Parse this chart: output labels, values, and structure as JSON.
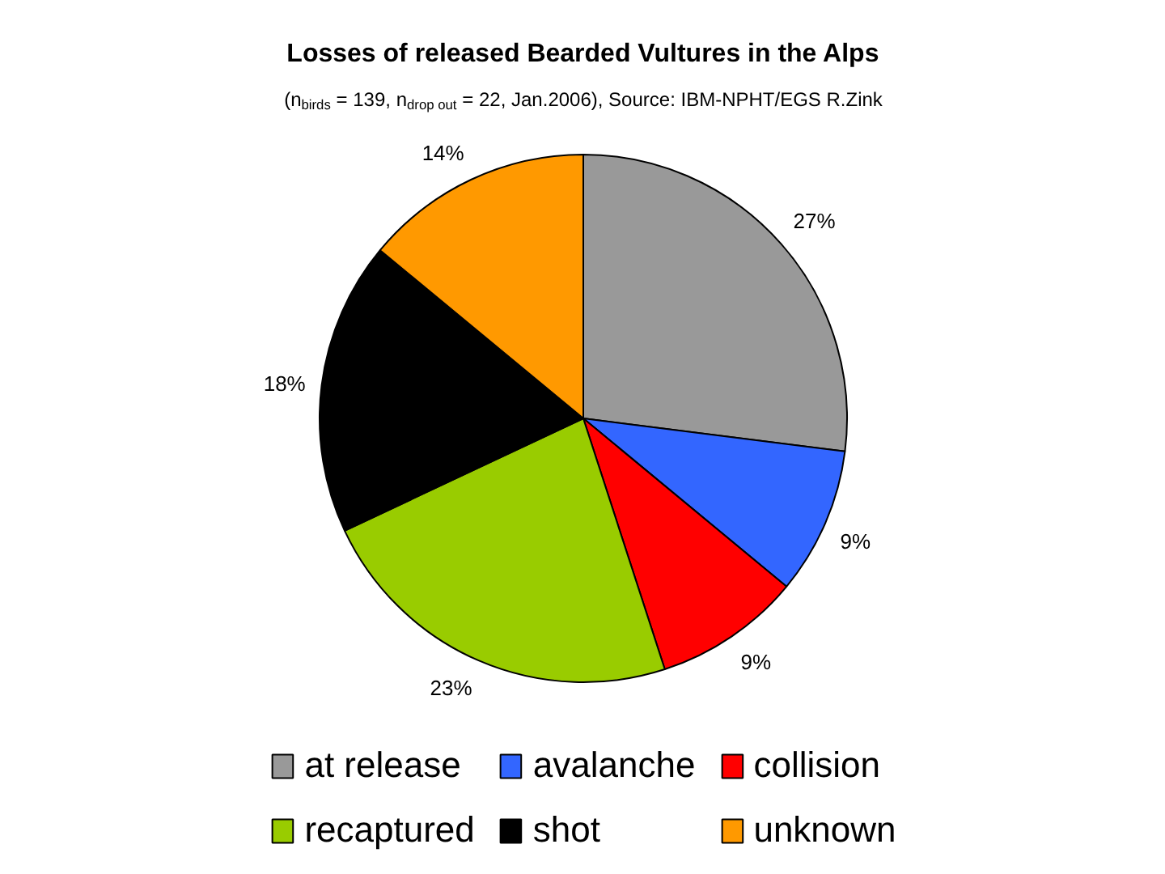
{
  "chart_data": {
    "type": "pie",
    "title": "Losses of released Bearded Vultures in the Alps",
    "subtitle": "(n$_{birds}$ = 139, n$_{drop out}$ = 22, Jan.2006), Source: IBM-NPHT/EGS R.Zink",
    "categories": [
      "at release",
      "avalanche",
      "collision",
      "recaptured",
      "shot",
      "unknown"
    ],
    "values": [
      27,
      9,
      9,
      23,
      18,
      14
    ],
    "colors": [
      "#999999",
      "#3366ff",
      "#ff0000",
      "#99cc00",
      "#000000",
      "#ff9900"
    ],
    "value_labels": [
      "27%",
      "9%",
      "9%",
      "23%",
      "18%",
      "14%"
    ],
    "legend": "bottom"
  }
}
